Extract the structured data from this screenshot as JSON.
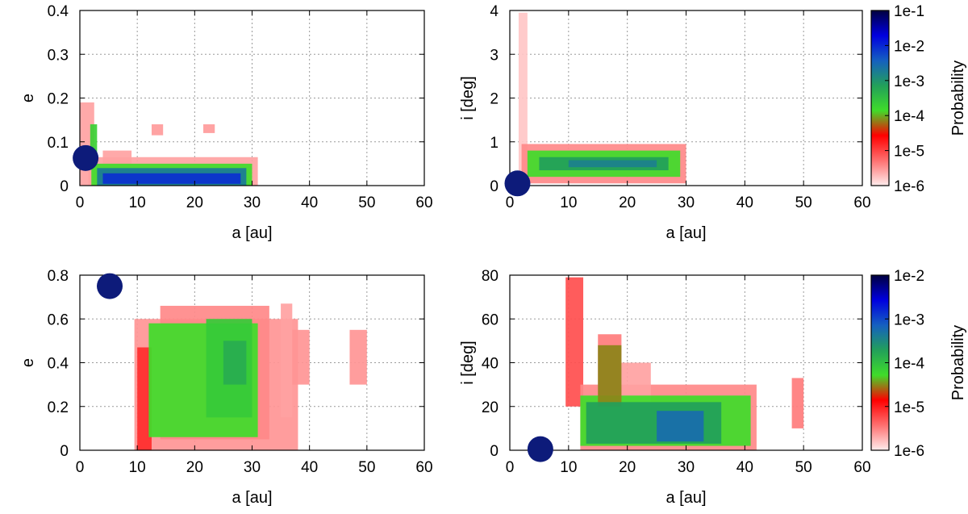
{
  "colors": {
    "planet": "#0d1b7a",
    "scale": [
      "#ffecec",
      "#ff7070",
      "#ff0000",
      "#3fdc2a",
      "#22a05a",
      "#1560c0",
      "#0000e0",
      "#000040"
    ]
  },
  "chart_data": [
    {
      "type": "heatmap",
      "xlabel": "a [au]",
      "ylabel": "e",
      "xlim": [
        0,
        60
      ],
      "ylim": [
        0,
        0.4
      ],
      "xticks": [
        "0",
        "10",
        "20",
        "30",
        "40",
        "50",
        "60"
      ],
      "yticks": [
        "0",
        "0.1",
        "0.2",
        "0.3",
        "0.4"
      ],
      "planet": {
        "a": 1.0,
        "y": 0.063
      },
      "regions": [
        {
          "a0": 0,
          "a1": 2.5,
          "y0": 0.0,
          "y1": 0.19,
          "level": 0.6
        },
        {
          "a0": 1.5,
          "a1": 31,
          "y0": 0.0,
          "y1": 0.065,
          "level": 0.6
        },
        {
          "a0": 4,
          "a1": 9,
          "y0": 0.03,
          "y1": 0.08,
          "level": 0.6
        },
        {
          "a0": 12.5,
          "a1": 14.5,
          "y0": 0.115,
          "y1": 0.14,
          "level": 0.65
        },
        {
          "a0": 21.5,
          "a1": 23.5,
          "y0": 0.12,
          "y1": 0.14,
          "level": 0.65
        },
        {
          "a0": 1.8,
          "a1": 3.0,
          "y0": 0.06,
          "y1": 0.14,
          "level": 3.2
        },
        {
          "a0": 2,
          "a1": 30,
          "y0": 0.0,
          "y1": 0.05,
          "level": 3.0
        },
        {
          "a0": 3,
          "a1": 29,
          "y0": 0.0,
          "y1": 0.04,
          "level": 4.6
        },
        {
          "a0": 4,
          "a1": 28,
          "y0": 0.004,
          "y1": 0.028,
          "level": 5.5
        }
      ]
    },
    {
      "type": "heatmap",
      "xlabel": "a [au]",
      "ylabel": "i [deg]",
      "xlim": [
        0,
        60
      ],
      "ylim": [
        0,
        4
      ],
      "xticks": [
        "0",
        "10",
        "20",
        "30",
        "40",
        "50",
        "60"
      ],
      "yticks": [
        "0",
        "1",
        "2",
        "3",
        "4"
      ],
      "colorbar": {
        "label": "Probability",
        "ticks": [
          "1e-1",
          "1e-2",
          "1e-3",
          "1e-4",
          "1e-5",
          "1e-6"
        ]
      },
      "planet": {
        "a": 1.3,
        "y": 0.05
      },
      "regions": [
        {
          "a0": 1.5,
          "a1": 3.0,
          "y0": 0.0,
          "y1": 3.95,
          "level": 0.3
        },
        {
          "a0": 2,
          "a1": 30,
          "y0": 0.05,
          "y1": 0.95,
          "level": 0.8
        },
        {
          "a0": 3,
          "a1": 29,
          "y0": 0.2,
          "y1": 0.8,
          "level": 3.0
        },
        {
          "a0": 5,
          "a1": 27,
          "y0": 0.35,
          "y1": 0.65,
          "level": 4.0
        },
        {
          "a0": 10,
          "a1": 25,
          "y0": 0.42,
          "y1": 0.58,
          "level": 4.5
        }
      ]
    },
    {
      "type": "heatmap",
      "xlabel": "a [au]",
      "ylabel": "e",
      "xlim": [
        0,
        60
      ],
      "ylim": [
        0,
        0.8
      ],
      "xticks": [
        "0",
        "10",
        "20",
        "30",
        "40",
        "50",
        "60"
      ],
      "yticks": [
        "0",
        "0.2",
        "0.4",
        "0.6",
        "0.8"
      ],
      "planet": {
        "a": 5.2,
        "y": 0.75
      },
      "regions": [
        {
          "a0": 9.5,
          "a1": 38,
          "y0": 0.0,
          "y1": 0.6,
          "level": 0.7
        },
        {
          "a0": 14,
          "a1": 33,
          "y0": 0.05,
          "y1": 0.66,
          "level": 0.8
        },
        {
          "a0": 35,
          "a1": 37,
          "y0": 0.15,
          "y1": 0.67,
          "level": 0.6
        },
        {
          "a0": 37,
          "a1": 40,
          "y0": 0.3,
          "y1": 0.55,
          "level": 0.7
        },
        {
          "a0": 47,
          "a1": 50,
          "y0": 0.3,
          "y1": 0.55,
          "level": 0.7
        },
        {
          "a0": 10,
          "a1": 12.5,
          "y0": 0.0,
          "y1": 0.47,
          "level": 1.6
        },
        {
          "a0": 12,
          "a1": 31,
          "y0": 0.06,
          "y1": 0.58,
          "level": 3.0
        },
        {
          "a0": 22,
          "a1": 30,
          "y0": 0.15,
          "y1": 0.6,
          "level": 3.3
        },
        {
          "a0": 25,
          "a1": 29,
          "y0": 0.3,
          "y1": 0.5,
          "level": 3.8
        }
      ]
    },
    {
      "type": "heatmap",
      "xlabel": "a [au]",
      "ylabel": "i [deg]",
      "xlim": [
        0,
        60
      ],
      "ylim": [
        0,
        80
      ],
      "xticks": [
        "0",
        "10",
        "20",
        "30",
        "40",
        "50",
        "60"
      ],
      "yticks": [
        "0",
        "20",
        "40",
        "60",
        "80"
      ],
      "colorbar": {
        "label": "Probability",
        "ticks": [
          "1e-2",
          "1e-3",
          "1e-4",
          "1e-5",
          "1e-6"
        ]
      },
      "planet": {
        "a": 5.2,
        "y": 0.5
      },
      "regions": [
        {
          "a0": 9.5,
          "a1": 12.5,
          "y0": 20,
          "y1": 79,
          "level": 1.3
        },
        {
          "a0": 12,
          "a1": 42,
          "y0": 0,
          "y1": 30,
          "level": 0.8
        },
        {
          "a0": 15,
          "a1": 19,
          "y0": 25,
          "y1": 53,
          "level": 0.9
        },
        {
          "a0": 19,
          "a1": 24,
          "y0": 20,
          "y1": 40,
          "level": 0.6
        },
        {
          "a0": 48,
          "a1": 50,
          "y0": 10,
          "y1": 33,
          "level": 0.9
        },
        {
          "a0": 12,
          "a1": 41,
          "y0": 2,
          "y1": 25,
          "level": 3.0
        },
        {
          "a0": 15,
          "a1": 19,
          "y0": 20,
          "y1": 48,
          "level": 2.6
        },
        {
          "a0": 13,
          "a1": 36,
          "y0": 3,
          "y1": 22,
          "level": 4.0
        },
        {
          "a0": 25,
          "a1": 33,
          "y0": 4,
          "y1": 18,
          "level": 4.8
        }
      ]
    }
  ]
}
